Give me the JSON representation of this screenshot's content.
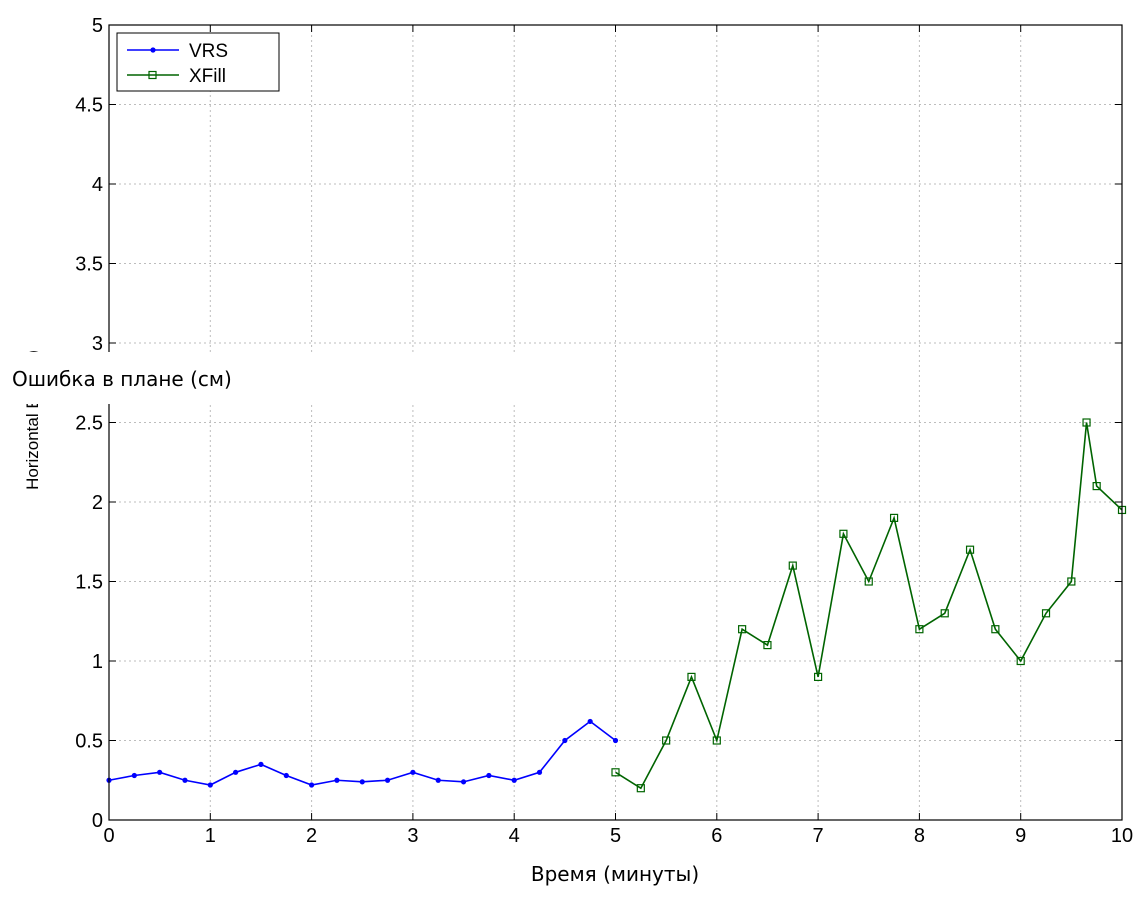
{
  "chart_data": {
    "type": "line",
    "xlabel": "Время (минуты)",
    "ylabel": "Horizontal E   (cms)",
    "ylabel_overlay": "Ошибка в плане (см)",
    "xlim": [
      0,
      10
    ],
    "ylim": [
      0,
      5
    ],
    "x_ticks": [
      "0",
      "1",
      "2",
      "3",
      "4",
      "5",
      "6",
      "7",
      "8",
      "9",
      "10"
    ],
    "y_ticks": [
      "0",
      "0.5",
      "1",
      "1.5",
      "2",
      "2.5",
      "3",
      "3.5",
      "4",
      "4.5",
      "5"
    ],
    "grid": true,
    "legend": {
      "position": "top-left"
    },
    "series": [
      {
        "name": "VRS",
        "color": "#0000ff",
        "marker": "dot",
        "x": [
          0,
          0.25,
          0.5,
          0.75,
          1.0,
          1.25,
          1.5,
          1.75,
          2.0,
          2.25,
          2.5,
          2.75,
          3.0,
          3.25,
          3.5,
          3.75,
          4.0,
          4.25,
          4.5,
          4.75,
          5.0
        ],
        "y": [
          0.25,
          0.28,
          0.3,
          0.25,
          0.22,
          0.3,
          0.35,
          0.28,
          0.22,
          0.25,
          0.24,
          0.25,
          0.3,
          0.25,
          0.24,
          0.28,
          0.25,
          0.3,
          0.5,
          0.62,
          0.5
        ]
      },
      {
        "name": "XFill",
        "color": "#006400",
        "marker": "square",
        "x": [
          5.0,
          5.25,
          5.5,
          5.75,
          6.0,
          6.25,
          6.5,
          6.75,
          7.0,
          7.25,
          7.5,
          7.75,
          8.0,
          8.25,
          8.5,
          8.75,
          9.0,
          9.25,
          9.5,
          9.65,
          9.75,
          10.0
        ],
        "y": [
          0.3,
          0.2,
          0.5,
          0.9,
          0.5,
          1.2,
          1.1,
          1.6,
          0.9,
          1.8,
          1.5,
          1.9,
          1.2,
          1.3,
          1.7,
          1.2,
          1.0,
          1.3,
          1.5,
          2.5,
          2.1,
          1.95
        ]
      }
    ]
  }
}
